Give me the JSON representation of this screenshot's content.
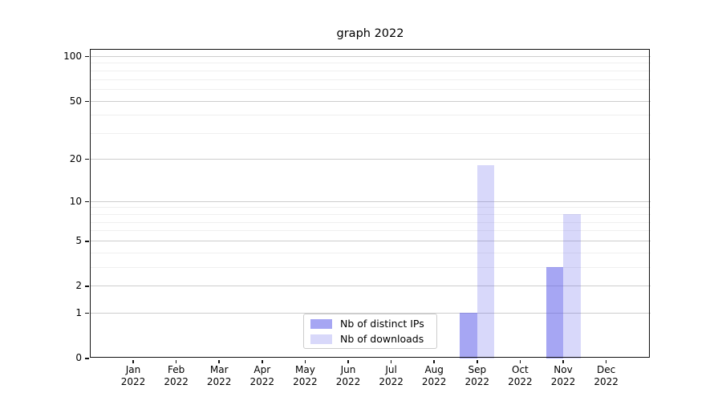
{
  "chart_data": {
    "type": "bar",
    "title": "graph 2022",
    "categories": [
      {
        "month": "Jan",
        "year": "2022"
      },
      {
        "month": "Feb",
        "year": "2022"
      },
      {
        "month": "Mar",
        "year": "2022"
      },
      {
        "month": "Apr",
        "year": "2022"
      },
      {
        "month": "May",
        "year": "2022"
      },
      {
        "month": "Jun",
        "year": "2022"
      },
      {
        "month": "Jul",
        "year": "2022"
      },
      {
        "month": "Aug",
        "year": "2022"
      },
      {
        "month": "Sep",
        "year": "2022"
      },
      {
        "month": "Oct",
        "year": "2022"
      },
      {
        "month": "Nov",
        "year": "2022"
      },
      {
        "month": "Dec",
        "year": "2022"
      }
    ],
    "series": [
      {
        "name": "Nb of distinct IPs",
        "color": "rgba(92,92,233,0.55)",
        "values": [
          0,
          0,
          0,
          0,
          0,
          0,
          0,
          0,
          1,
          0,
          3,
          0
        ]
      },
      {
        "name": "Nb of downloads",
        "color": "rgba(92,92,233,0.24)",
        "values": [
          0,
          0,
          0,
          0,
          0,
          0,
          0,
          0,
          18,
          0,
          8,
          0
        ]
      }
    ],
    "y_axis": {
      "scale": "log1p",
      "ymin": 0,
      "ymax": 112,
      "major_ticks": [
        0,
        1,
        2,
        5,
        10,
        20,
        50,
        100
      ],
      "minor_ticks": [
        3,
        4,
        6,
        7,
        8,
        9,
        30,
        40,
        60,
        70,
        80,
        90
      ]
    },
    "legend": {
      "position": "lower-center"
    },
    "grid": {
      "enabled": true,
      "major_color": "#cdcdcd",
      "minor_color": "#efefef"
    },
    "colors": {
      "spine": "#111111",
      "background": "#ffffff",
      "text": "#000000"
    }
  }
}
